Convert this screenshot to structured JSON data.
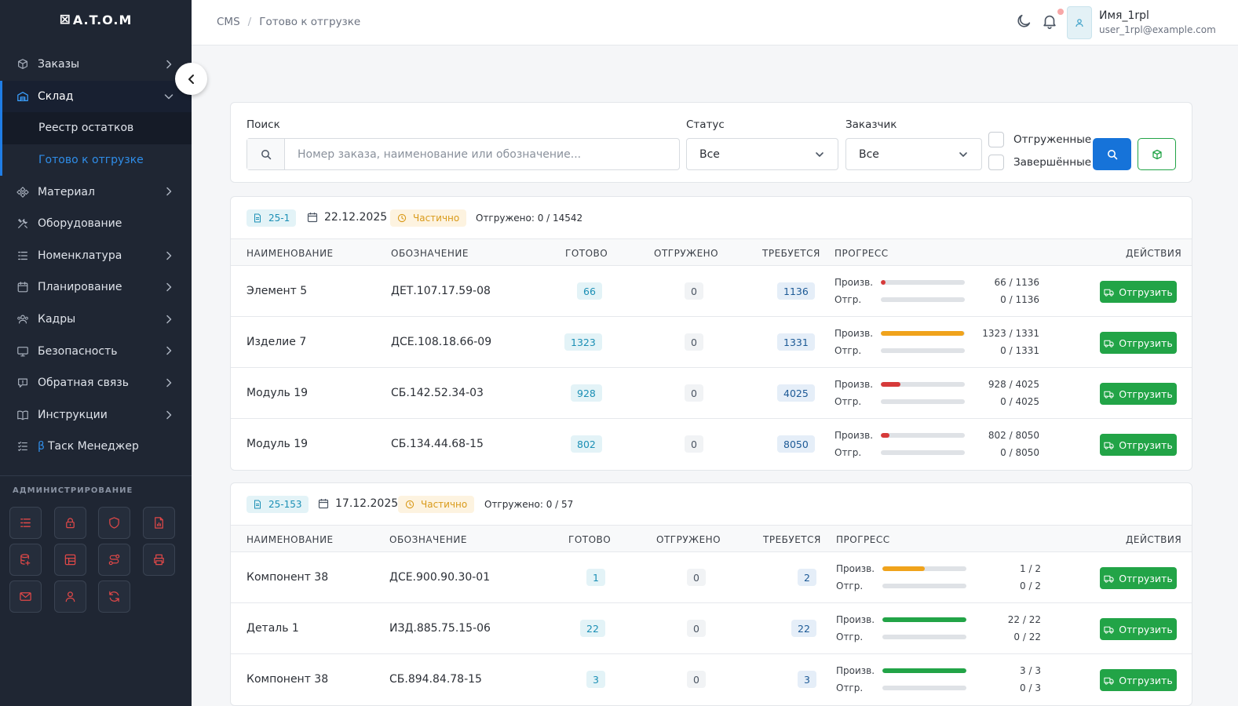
{
  "app": {
    "logo": "A.T.O.M",
    "logo_mark": "⊠"
  },
  "sidebar": {
    "items": [
      {
        "label": "Заказы",
        "icon": "cube-icon",
        "has_chevron": true
      },
      {
        "label": "Склад",
        "icon": "warehouse-icon",
        "has_chevron": true,
        "active": true
      },
      {
        "label": "Материал",
        "icon": "material-icon",
        "has_chevron": true
      },
      {
        "label": "Оборудование",
        "icon": "tools-icon",
        "has_chevron": false
      },
      {
        "label": "Номенклатура",
        "icon": "list-icon",
        "has_chevron": true
      },
      {
        "label": "Планирование",
        "icon": "calendar-icon",
        "has_chevron": true
      },
      {
        "label": "Кадры",
        "icon": "users-icon",
        "has_chevron": true
      },
      {
        "label": "Безопасность",
        "icon": "monitor-icon",
        "has_chevron": true
      },
      {
        "label": "Обратная связь",
        "icon": "feedback-icon",
        "has_chevron": true
      },
      {
        "label": "Инструкции",
        "icon": "book-icon",
        "has_chevron": true
      }
    ],
    "sub_items": [
      {
        "label": "Реестр остатков"
      },
      {
        "label": "Готово к отгрузке"
      }
    ],
    "task_manager": {
      "beta": "β",
      "label": "Таск Менеджер"
    },
    "admin_title": "АДМИНИСТРИРОВАНИЕ",
    "admin_icons": [
      "list-icon",
      "lock-icon",
      "shield-icon",
      "file-chart-icon",
      "database-icon",
      "layout-icon",
      "route-icon",
      "printer-icon",
      "mail-icon",
      "user-icon",
      "refresh-icon"
    ]
  },
  "header": {
    "breadcrumb": [
      "CMS",
      "Готово к отгрузке"
    ],
    "breadcrumb_sep": "/",
    "user_name": "Имя_1rpl",
    "user_email": "user_1rpl@example.com"
  },
  "filters": {
    "search_label": "Поиск",
    "search_placeholder": "Номер заказа, наименование или обозначение...",
    "status_label": "Статус",
    "status_value": "Все",
    "customer_label": "Заказчик",
    "customer_value": "Все",
    "checkbox_shipped": "Отгруженные",
    "checkbox_completed": "Завершённые"
  },
  "table_headers": {
    "name": "НАИМЕНОВАНИЕ",
    "designation": "ОБОЗНАЧЕНИЕ",
    "ready": "ГОТОВО",
    "shipped": "ОТГРУЖЕНО",
    "required": "ТРЕБУЕТСЯ",
    "progress": "ПРОГРЕСС",
    "actions": "ДЕЙСТВИЯ"
  },
  "labels": {
    "prod": "Произв.",
    "ship": "Отгр.",
    "ship_button": "Отгрузить"
  },
  "colors": {
    "accent": "#1673d9",
    "success": "#22a447",
    "danger": "#d63a3a",
    "warning": "#f0a31c"
  },
  "orders": [
    {
      "number": "25-1",
      "date": "22.12.2025",
      "status": "Частично",
      "shipped_summary": "Отгружено: 0 / 14542",
      "rows": [
        {
          "name": "Элемент 5",
          "designation": "ДЕТ.107.17.59-08",
          "ready": "66",
          "shipped": "0",
          "required": "1136",
          "prod_text": "66 / 1136",
          "ship_text": "0 / 1136",
          "prod_ratio": 0.058,
          "ship_ratio": 0,
          "prod_color": "#d63a3a"
        },
        {
          "name": "Изделие 7",
          "designation": "ДСЕ.108.18.66-09",
          "ready": "1323",
          "shipped": "0",
          "required": "1331",
          "prod_text": "1323 / 1331",
          "ship_text": "0 / 1331",
          "prod_ratio": 0.994,
          "ship_ratio": 0,
          "prod_color": "#f0a31c"
        },
        {
          "name": "Модуль 19",
          "designation": "СБ.142.52.34-03",
          "ready": "928",
          "shipped": "0",
          "required": "4025",
          "prod_text": "928 / 4025",
          "ship_text": "0 / 4025",
          "prod_ratio": 0.231,
          "ship_ratio": 0,
          "prod_color": "#d63a3a"
        },
        {
          "name": "Модуль 19",
          "designation": "СБ.134.44.68-15",
          "ready": "802",
          "shipped": "0",
          "required": "8050",
          "prod_text": "802 / 8050",
          "ship_text": "0 / 8050",
          "prod_ratio": 0.1,
          "ship_ratio": 0,
          "prod_color": "#d63a3a"
        }
      ]
    },
    {
      "number": "25-153",
      "date": "17.12.2025",
      "status": "Частично",
      "shipped_summary": "Отгружено: 0 / 57",
      "rows": [
        {
          "name": "Компонент 38",
          "designation": "ДСЕ.900.90.30-01",
          "ready": "1",
          "shipped": "0",
          "required": "2",
          "prod_text": "1 / 2",
          "ship_text": "0 / 2",
          "prod_ratio": 0.5,
          "ship_ratio": 0,
          "prod_color": "#f0a31c"
        },
        {
          "name": "Деталь 1",
          "designation": "ИЗД.885.75.15-06",
          "ready": "22",
          "shipped": "0",
          "required": "22",
          "prod_text": "22 / 22",
          "ship_text": "0 / 22",
          "prod_ratio": 1,
          "ship_ratio": 0,
          "prod_color": "#22a447"
        },
        {
          "name": "Компонент 38",
          "designation": "СБ.894.84.78-15",
          "ready": "3",
          "shipped": "0",
          "required": "3",
          "prod_text": "3 / 3",
          "ship_text": "0 / 3",
          "prod_ratio": 1,
          "ship_ratio": 0,
          "prod_color": "#22a447"
        }
      ]
    }
  ]
}
